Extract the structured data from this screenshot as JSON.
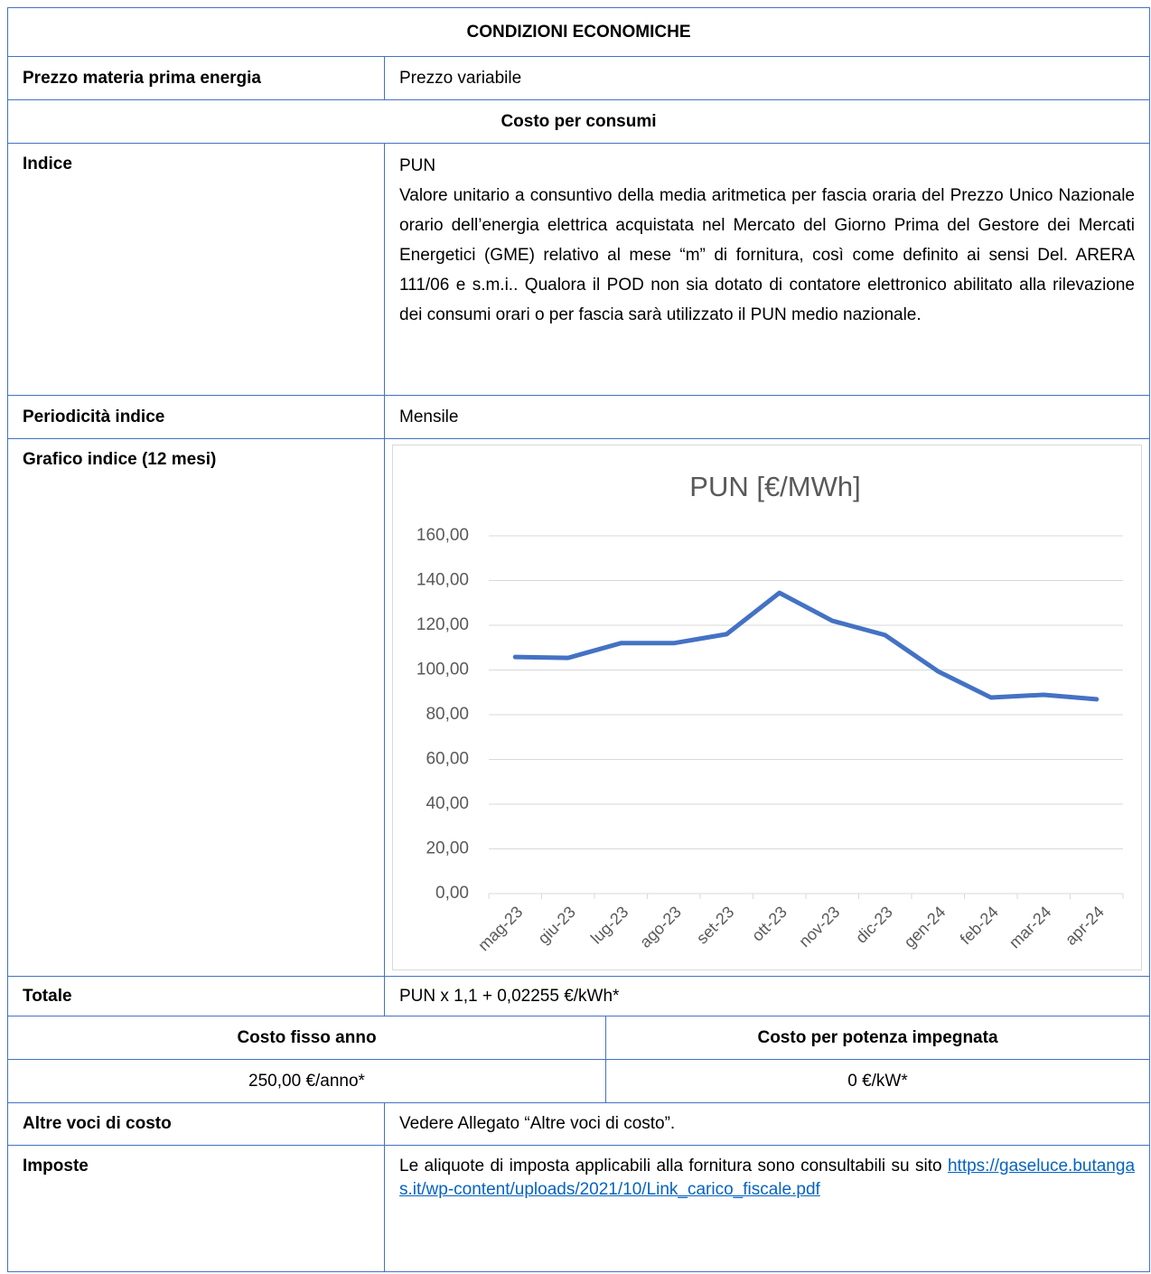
{
  "title": "CONDIZIONI ECONOMICHE",
  "prezzo": {
    "label": "Prezzo materia prima energia",
    "value": "Prezzo variabile"
  },
  "section": "Costo per consumi",
  "indice": {
    "label": "Indice",
    "name": "PUN",
    "description": "Valore unitario a consuntivo della media aritmetica per fascia oraria del Prezzo Unico Nazionale orario dell’energia elettrica acquistata nel Mercato del Giorno Prima del Gestore dei Mercati Energetici (GME) relativo al mese “m” di fornitura, così come definito ai sensi Del. ARERA 111/06 e s.m.i.. Qualora il POD non sia dotato di contatore elettronico abilitato alla rilevazione dei consumi orari o per fascia sarà utilizzato il PUN medio nazionale."
  },
  "periodicita": {
    "label": "Periodicità indice",
    "value": "Mensile"
  },
  "grafico": {
    "label": "Grafico indice (12 mesi)"
  },
  "chart_data": {
    "type": "line",
    "title": "PUN [€/MWh]",
    "categories": [
      "mag-23",
      "giu-23",
      "lug-23",
      "ago-23",
      "set-23",
      "ott-23",
      "nov-23",
      "dic-23",
      "gen-24",
      "feb-24",
      "mar-24",
      "apr-24"
    ],
    "series": [
      {
        "name": "PUN",
        "color": "#4472c4",
        "values": [
          105.8,
          105.4,
          112,
          112,
          116,
          134.5,
          122,
          115.6,
          99.4,
          87.7,
          88.9,
          86.9
        ]
      }
    ],
    "ylim": [
      0,
      160
    ],
    "yticks": [
      {
        "value": 0,
        "label": "0,00"
      },
      {
        "value": 20,
        "label": "20,00"
      },
      {
        "value": 40,
        "label": "40,00"
      },
      {
        "value": 60,
        "label": "60,00"
      },
      {
        "value": 80,
        "label": "80,00"
      },
      {
        "value": 100,
        "label": "100,00"
      },
      {
        "value": 120,
        "label": "120,00"
      },
      {
        "value": 140,
        "label": "140,00"
      },
      {
        "value": 160,
        "label": "160,00"
      }
    ],
    "grid": true
  },
  "totale": {
    "label": "Totale",
    "value": "PUN x 1,1 + 0,02255 €/kWh*"
  },
  "costi": {
    "headers": [
      "Costo fisso anno",
      "Costo per potenza impegnata"
    ],
    "values": [
      "250,00 €/anno*",
      "0 €/kW*"
    ]
  },
  "altre": {
    "label": "Altre voci di costo",
    "value": "Vedere Allegato “Altre voci di costo”."
  },
  "imposte": {
    "label": "Imposte",
    "text": "Le aliquote di imposta applicabili alla fornitura sono consultabili su sito",
    "link": "https://gaseluce.butangas.it/wp-content/uploads/2021/10/Link_carico_fiscale.pdf"
  }
}
